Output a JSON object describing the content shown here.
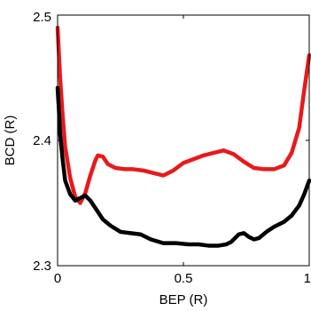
{
  "chart_data": {
    "type": "line",
    "title": "",
    "xlabel": "BEP (R)",
    "ylabel": "BCD (R)",
    "xlim": [
      0,
      1
    ],
    "ylim": [
      2.3,
      2.5
    ],
    "xticks": [
      0,
      0.5,
      1
    ],
    "xtick_labels": [
      "0",
      "0.5",
      "1"
    ],
    "yticks": [
      2.3,
      2.4,
      2.5
    ],
    "ytick_labels": [
      "2.3",
      "2.4",
      "2.5"
    ],
    "grid": false,
    "legend": "none",
    "series": [
      {
        "color": "#e8191c",
        "x": [
          0.0,
          0.005,
          0.01,
          0.02,
          0.03,
          0.05,
          0.07,
          0.09,
          0.11,
          0.13,
          0.15,
          0.16,
          0.18,
          0.2,
          0.23,
          0.27,
          0.3,
          0.34,
          0.38,
          0.42,
          0.46,
          0.5,
          0.54,
          0.58,
          0.62,
          0.66,
          0.7,
          0.74,
          0.78,
          0.82,
          0.86,
          0.9,
          0.93,
          0.96,
          0.98,
          1.0
        ],
        "y": [
          2.49,
          2.47,
          2.45,
          2.42,
          2.395,
          2.37,
          2.355,
          2.35,
          2.358,
          2.372,
          2.384,
          2.388,
          2.387,
          2.381,
          2.378,
          2.377,
          2.377,
          2.376,
          2.374,
          2.372,
          2.376,
          2.382,
          2.385,
          2.388,
          2.39,
          2.392,
          2.389,
          2.383,
          2.378,
          2.377,
          2.377,
          2.38,
          2.39,
          2.41,
          2.44,
          2.468
        ]
      },
      {
        "color": "#000000",
        "x": [
          0.0,
          0.005,
          0.01,
          0.02,
          0.03,
          0.05,
          0.07,
          0.09,
          0.11,
          0.13,
          0.15,
          0.18,
          0.21,
          0.25,
          0.29,
          0.33,
          0.37,
          0.42,
          0.47,
          0.52,
          0.56,
          0.6,
          0.64,
          0.67,
          0.69,
          0.72,
          0.74,
          0.76,
          0.78,
          0.8,
          0.83,
          0.86,
          0.9,
          0.93,
          0.96,
          0.98,
          1.0
        ],
        "y": [
          2.442,
          2.425,
          2.405,
          2.385,
          2.368,
          2.357,
          2.352,
          2.354,
          2.356,
          2.352,
          2.346,
          2.337,
          2.332,
          2.327,
          2.326,
          2.325,
          2.321,
          2.318,
          2.318,
          2.317,
          2.317,
          2.316,
          2.316,
          2.317,
          2.319,
          2.325,
          2.326,
          2.323,
          2.321,
          2.322,
          2.327,
          2.331,
          2.335,
          2.34,
          2.348,
          2.357,
          2.368
        ]
      }
    ]
  }
}
